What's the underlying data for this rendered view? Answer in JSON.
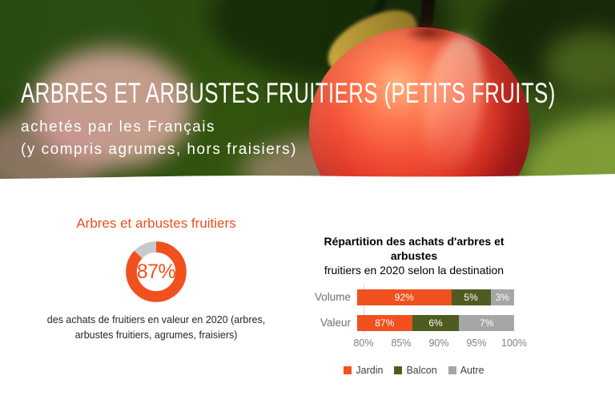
{
  "header": {
    "title": "ARBRES ET ARBUSTES FRUITIERS (PETITS FRUITS)",
    "subtitle_line1": "achetés par les Français",
    "subtitle_line2": "(y compris agrumes, hors fraisiers)"
  },
  "colors": {
    "accent_orange": "#F0511E",
    "olive_green": "#4E5C20",
    "gray": "#A6A6A6",
    "donut_remainder": "#C9C9C9"
  },
  "chart_data": [
    {
      "type": "pie",
      "subtype": "donut",
      "title": "Arbres et arbustes fruitiers",
      "center_label": "87%",
      "slices": [
        {
          "label": "achats de fruitiers en valeur",
          "value": 87,
          "color": "#F0511E"
        },
        {
          "label": "autres",
          "value": 13,
          "color": "#C9C9C9"
        }
      ],
      "caption": "des achats de fruitiers en valeur en 2020 (arbres, arbustes fruitiers, agrumes, fraisiers)"
    },
    {
      "type": "bar",
      "orientation": "horizontal",
      "stacked": true,
      "title": "Répartition des achats d'arbres et arbustes",
      "title_line2": "fruitiers en 2020 selon la destination",
      "categories": [
        "Volume",
        "Valeur"
      ],
      "series": [
        {
          "name": "Jardin",
          "color": "#F0511E",
          "values": [
            92,
            87
          ]
        },
        {
          "name": "Balcon",
          "color": "#4E5C20",
          "values": [
            5,
            6
          ]
        },
        {
          "name": "Autre",
          "color": "#A6A6A6",
          "values": [
            3,
            7
          ]
        }
      ],
      "data_labels": [
        "92%",
        "5%",
        "3%",
        "87%",
        "6%",
        "7%"
      ],
      "xlim": [
        80,
        100
      ],
      "x_ticks": [
        "80%",
        "85%",
        "90%",
        "95%",
        "100%"
      ],
      "grid": false,
      "legend_position": "bottom"
    }
  ]
}
